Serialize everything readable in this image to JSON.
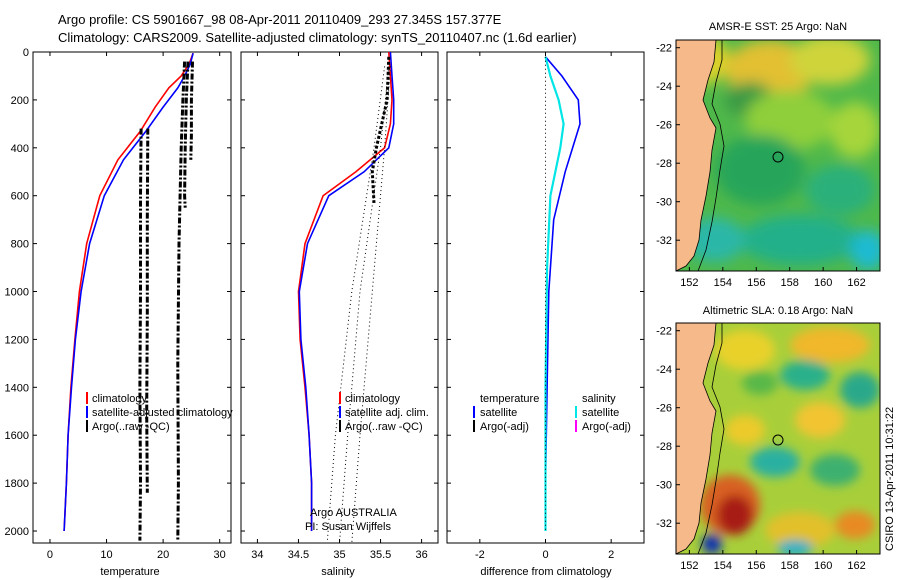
{
  "header": {
    "line1": "Argo profile: CS 5901667_98 08-Apr-2011 20110409_293 27.345S 157.377E",
    "line2": "Climatology: CARS2009. Satellite-adjusted climatology: synTS_20110407.nc (1.6d earlier)"
  },
  "colors": {
    "climatology": "#ff0000",
    "satellite": "#0000ff",
    "argo": "#000000",
    "satellite_salinity": "#00e5e5",
    "argo_adj_salinity": "#ff00ff",
    "land": "#f5b98a"
  },
  "credit": "CSIRO 13-Apr-2011 10:31:22",
  "annotation": {
    "line1": "Argo AUSTRALIA",
    "line2": "PI: Susan Wijffels"
  },
  "chart_data": [
    {
      "type": "line",
      "name": "temperature-profile",
      "xlabel": "temperature",
      "ylabel": "",
      "xlim": [
        -3,
        32
      ],
      "ylim": [
        2050,
        0
      ],
      "xticks": [
        0,
        10,
        20,
        30
      ],
      "yticks": [
        0,
        200,
        400,
        600,
        800,
        1000,
        1200,
        1400,
        1600,
        1800,
        2000
      ],
      "legend": [
        "climatology",
        "satellite-adjusted climatology",
        "Argo(..raw -QC)"
      ],
      "series": [
        {
          "name": "climatology",
          "x": [
            25.3,
            24.6,
            23.2,
            21.0,
            18.6,
            16.0,
            12.0,
            8.8,
            6.5,
            5.2,
            4.4,
            3.7,
            3.2,
            2.9,
            2.6,
            2.5
          ],
          "y": [
            5,
            50,
            100,
            150,
            230,
            330,
            450,
            600,
            800,
            1000,
            1200,
            1400,
            1600,
            1800,
            1950,
            2000
          ]
        },
        {
          "name": "satellite-adjusted climatology",
          "x": [
            25.3,
            24.8,
            23.8,
            22.6,
            20.0,
            17.0,
            13.0,
            9.6,
            7.0,
            5.5,
            4.5,
            3.8,
            3.2,
            2.9,
            2.6,
            2.5
          ],
          "y": [
            5,
            50,
            100,
            150,
            230,
            330,
            450,
            600,
            800,
            1000,
            1200,
            1400,
            1600,
            1800,
            1950,
            2000
          ]
        },
        {
          "name": "Argo(..raw -QC) 1",
          "x": [
            16.1,
            16.0,
            16.0,
            15.9,
            16.0,
            15.9
          ],
          "y": [
            320,
            600,
            1000,
            1400,
            1800,
            2040
          ]
        },
        {
          "name": "Argo(..raw -QC) 2",
          "x": [
            17.3,
            17.2,
            17.2,
            17.1,
            17.2
          ],
          "y": [
            320,
            700,
            1100,
            1500,
            1840
          ]
        },
        {
          "name": "Argo(..raw -QC) 3",
          "x": [
            23.8,
            23.5,
            23.2,
            22.8,
            22.6,
            22.7,
            22.6
          ],
          "y": [
            40,
            200,
            400,
            800,
            1300,
            1800,
            2040
          ]
        },
        {
          "name": "Argo(..raw -QC) 4",
          "x": [
            24.4,
            24.1,
            23.9,
            23.8,
            23.9
          ],
          "y": [
            40,
            200,
            400,
            600,
            650
          ]
        },
        {
          "name": "Argo(..raw -QC) 5",
          "x": [
            25.2,
            25.0,
            25.0,
            24.9
          ],
          "y": [
            40,
            200,
            350,
            450
          ]
        }
      ]
    },
    {
      "type": "line",
      "name": "salinity-profile",
      "xlabel": "salinity",
      "xlim": [
        33.8,
        36.2
      ],
      "ylim": [
        2050,
        0
      ],
      "xticks": [
        34,
        34.5,
        35,
        35.5,
        36
      ],
      "legend": [
        "climatology",
        "satellite adj. clim.",
        "Argo(..raw -QC)"
      ],
      "series": [
        {
          "name": "climatology",
          "x": [
            35.6,
            35.62,
            35.64,
            35.62,
            35.55,
            35.2,
            34.8,
            34.58,
            34.5,
            34.52,
            34.58,
            34.63,
            34.66,
            34.66
          ],
          "y": [
            0,
            100,
            200,
            300,
            400,
            500,
            600,
            800,
            1000,
            1200,
            1400,
            1600,
            1800,
            2000
          ]
        },
        {
          "name": "satellite adj. clim.",
          "x": [
            35.62,
            35.64,
            35.66,
            35.66,
            35.6,
            35.3,
            34.87,
            34.61,
            34.51,
            34.53,
            34.59,
            34.63,
            34.66,
            34.66
          ],
          "y": [
            0,
            100,
            200,
            300,
            400,
            500,
            600,
            800,
            1000,
            1200,
            1400,
            1600,
            1800,
            2000
          ]
        },
        {
          "name": "Argo(..raw -QC) 1",
          "x": [
            35.6,
            35.58,
            35.45,
            35.4,
            35.42
          ],
          "y": [
            20,
            200,
            400,
            500,
            630
          ]
        },
        {
          "name": "Argo(..raw -QC) 2",
          "x": [
            35.55,
            35.42,
            35.15,
            34.95,
            34.85
          ],
          "y": [
            60,
            400,
            1000,
            1600,
            2050
          ]
        },
        {
          "name": "Argo(..raw -QC) 3",
          "x": [
            35.6,
            35.5,
            35.25,
            35.1,
            35.0
          ],
          "y": [
            60,
            400,
            1000,
            1600,
            2050
          ]
        },
        {
          "name": "Argo(..raw -QC) 4",
          "x": [
            35.62,
            35.55,
            35.4,
            35.25,
            35.15
          ],
          "y": [
            60,
            400,
            1000,
            1600,
            2050
          ]
        }
      ]
    },
    {
      "type": "line",
      "name": "difference-profile",
      "xlabel": "difference from climatology",
      "xlim": [
        -3,
        3
      ],
      "ylim": [
        2050,
        0
      ],
      "xticks": [
        -2,
        0,
        2
      ],
      "legend": [
        "temperature",
        "satellite",
        "Argo(-adj)",
        "salinity",
        "satellite",
        "Argo(-adj)"
      ],
      "series": [
        {
          "name": "temperature satellite",
          "x": [
            0.0,
            0.5,
            1.0,
            1.05,
            0.6,
            0.25,
            0.1,
            0.05,
            0.0,
            0.0
          ],
          "y": [
            20,
            100,
            200,
            300,
            500,
            700,
            1000,
            1400,
            1800,
            2000
          ]
        },
        {
          "name": "salinity satellite",
          "x": [
            0.0,
            0.15,
            0.4,
            0.55,
            0.45,
            0.15,
            0.05,
            0.0,
            0.0,
            0.0
          ],
          "y": [
            20,
            100,
            200,
            300,
            400,
            600,
            900,
            1400,
            1800,
            2000
          ]
        },
        {
          "name": "temperature Argo(-adj)",
          "x": [
            0.0,
            0.0,
            0.0
          ],
          "y": [
            20,
            1000,
            2000
          ]
        }
      ]
    },
    {
      "type": "heatmap",
      "name": "sst-map",
      "title": "AMSR-E SST: 25 Argo: NaN",
      "xticks": [
        152,
        154,
        156,
        158,
        160,
        162
      ],
      "yticks": [
        -22,
        -24,
        -26,
        -28,
        -30,
        -32
      ],
      "xlim": [
        151.2,
        163.4
      ],
      "ylim": [
        -33.6,
        -21.6
      ],
      "argo_position": [
        157.377,
        -27.345
      ]
    },
    {
      "type": "heatmap",
      "name": "sla-map",
      "title": "Altimetric SLA: 0.18 Argo: NaN",
      "xticks": [
        152,
        154,
        156,
        158,
        160,
        162
      ],
      "yticks": [
        -22,
        -24,
        -26,
        -28,
        -30,
        -32
      ],
      "xlim": [
        151.2,
        163.4
      ],
      "ylim": [
        -33.6,
        -21.6
      ],
      "argo_position": [
        157.377,
        -27.345
      ]
    }
  ]
}
